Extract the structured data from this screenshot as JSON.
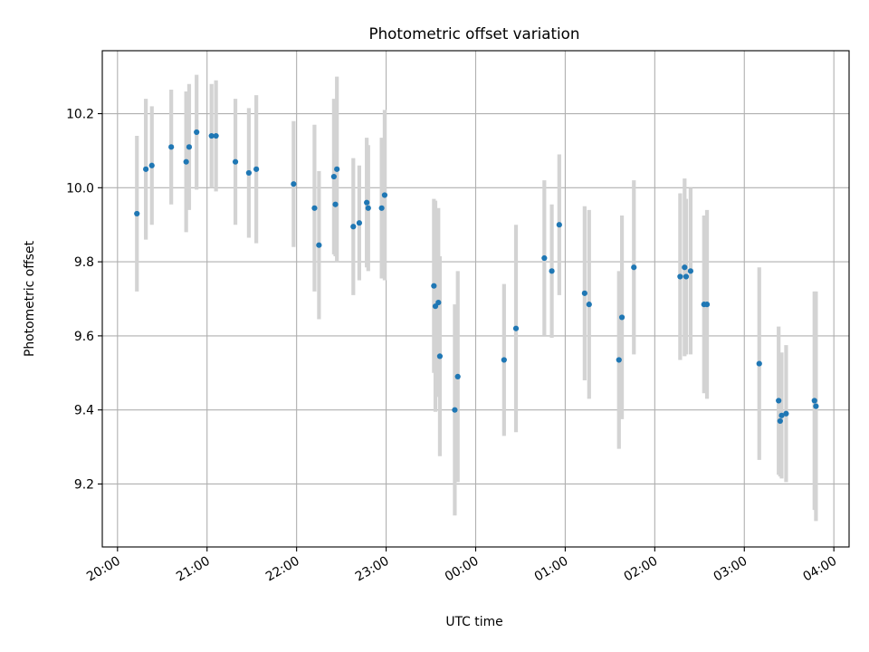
{
  "chart_data": {
    "type": "scatter",
    "title": "Photometric offset variation",
    "xlabel": "UTC time",
    "ylabel": "Photometric offset",
    "x_tick_labels": [
      "20:00",
      "21:00",
      "22:00",
      "23:00",
      "00:00",
      "01:00",
      "02:00",
      "03:00",
      "04:00"
    ],
    "y_tick_labels": [
      "9.2",
      "9.4",
      "9.6",
      "9.8",
      "10.0",
      "10.2"
    ],
    "x_tick_hours": [
      20,
      21,
      22,
      23,
      24,
      25,
      26,
      27,
      28
    ],
    "y_ticks": [
      9.2,
      9.4,
      9.6,
      9.8,
      10.0,
      10.2
    ],
    "xlim_hours": [
      19.83,
      28.17
    ],
    "ylim": [
      9.03,
      10.37
    ],
    "grid": true,
    "colors": {
      "points": "#1f77b4",
      "error_bars": "#d3d3d3",
      "grid": "#b0b0b0"
    },
    "points": [
      {
        "t": "20:13",
        "y": 9.93,
        "err": 0.21
      },
      {
        "t": "20:19",
        "y": 10.05,
        "err": 0.19
      },
      {
        "t": "20:23",
        "y": 10.06,
        "err": 0.16
      },
      {
        "t": "20:36",
        "y": 10.11,
        "err": 0.155
      },
      {
        "t": "20:46",
        "y": 10.07,
        "err": 0.19
      },
      {
        "t": "20:48",
        "y": 10.11,
        "err": 0.17
      },
      {
        "t": "20:53",
        "y": 10.15,
        "err": 0.155
      },
      {
        "t": "21:03",
        "y": 10.14,
        "err": 0.14
      },
      {
        "t": "21:06",
        "y": 10.14,
        "err": 0.15
      },
      {
        "t": "21:19",
        "y": 10.07,
        "err": 0.17
      },
      {
        "t": "21:28",
        "y": 10.04,
        "err": 0.175
      },
      {
        "t": "21:33",
        "y": 10.05,
        "err": 0.2
      },
      {
        "t": "21:58",
        "y": 10.01,
        "err": 0.17
      },
      {
        "t": "22:12",
        "y": 9.945,
        "err": 0.225
      },
      {
        "t": "22:15",
        "y": 9.845,
        "err": 0.2
      },
      {
        "t": "22:25",
        "y": 10.03,
        "err": 0.21
      },
      {
        "t": "22:26",
        "y": 9.955,
        "err": 0.14
      },
      {
        "t": "22:27",
        "y": 10.05,
        "err": 0.25
      },
      {
        "t": "22:38",
        "y": 9.895,
        "err": 0.185
      },
      {
        "t": "22:42",
        "y": 9.905,
        "err": 0.155
      },
      {
        "t": "22:47",
        "y": 9.96,
        "err": 0.175
      },
      {
        "t": "22:48",
        "y": 9.945,
        "err": 0.17
      },
      {
        "t": "22:57",
        "y": 9.945,
        "err": 0.19
      },
      {
        "t": "22:59",
        "y": 9.98,
        "err": 0.23
      },
      {
        "t": "23:32",
        "y": 9.735,
        "err": 0.235
      },
      {
        "t": "23:33",
        "y": 9.68,
        "err": 0.285
      },
      {
        "t": "23:35",
        "y": 9.69,
        "err": 0.255
      },
      {
        "t": "23:36",
        "y": 9.545,
        "err": 0.27
      },
      {
        "t": "23:46",
        "y": 9.4,
        "err": 0.285
      },
      {
        "t": "23:48",
        "y": 9.49,
        "err": 0.285
      },
      {
        "t": "00:19",
        "y": 9.535,
        "err": 0.205
      },
      {
        "t": "00:27",
        "y": 9.62,
        "err": 0.28
      },
      {
        "t": "00:46",
        "y": 9.81,
        "err": 0.21
      },
      {
        "t": "00:51",
        "y": 9.775,
        "err": 0.18
      },
      {
        "t": "00:56",
        "y": 9.9,
        "err": 0.19
      },
      {
        "t": "01:13",
        "y": 9.715,
        "err": 0.235
      },
      {
        "t": "01:16",
        "y": 9.685,
        "err": 0.255
      },
      {
        "t": "01:36",
        "y": 9.535,
        "err": 0.24
      },
      {
        "t": "01:38",
        "y": 9.65,
        "err": 0.275
      },
      {
        "t": "01:46",
        "y": 9.785,
        "err": 0.235
      },
      {
        "t": "02:17",
        "y": 9.76,
        "err": 0.225
      },
      {
        "t": "02:20",
        "y": 9.785,
        "err": 0.24
      },
      {
        "t": "02:21",
        "y": 9.76,
        "err": 0.21
      },
      {
        "t": "02:24",
        "y": 9.775,
        "err": 0.225
      },
      {
        "t": "02:33",
        "y": 9.685,
        "err": 0.24
      },
      {
        "t": "02:35",
        "y": 9.685,
        "err": 0.255
      },
      {
        "t": "03:10",
        "y": 9.525,
        "err": 0.26
      },
      {
        "t": "03:23",
        "y": 9.425,
        "err": 0.2
      },
      {
        "t": "03:24",
        "y": 9.37,
        "err": 0.15
      },
      {
        "t": "03:25",
        "y": 9.385,
        "err": 0.17
      },
      {
        "t": "03:28",
        "y": 9.39,
        "err": 0.185
      },
      {
        "t": "03:47",
        "y": 9.425,
        "err": 0.295
      },
      {
        "t": "03:48",
        "y": 9.41,
        "err": 0.31
      }
    ]
  }
}
